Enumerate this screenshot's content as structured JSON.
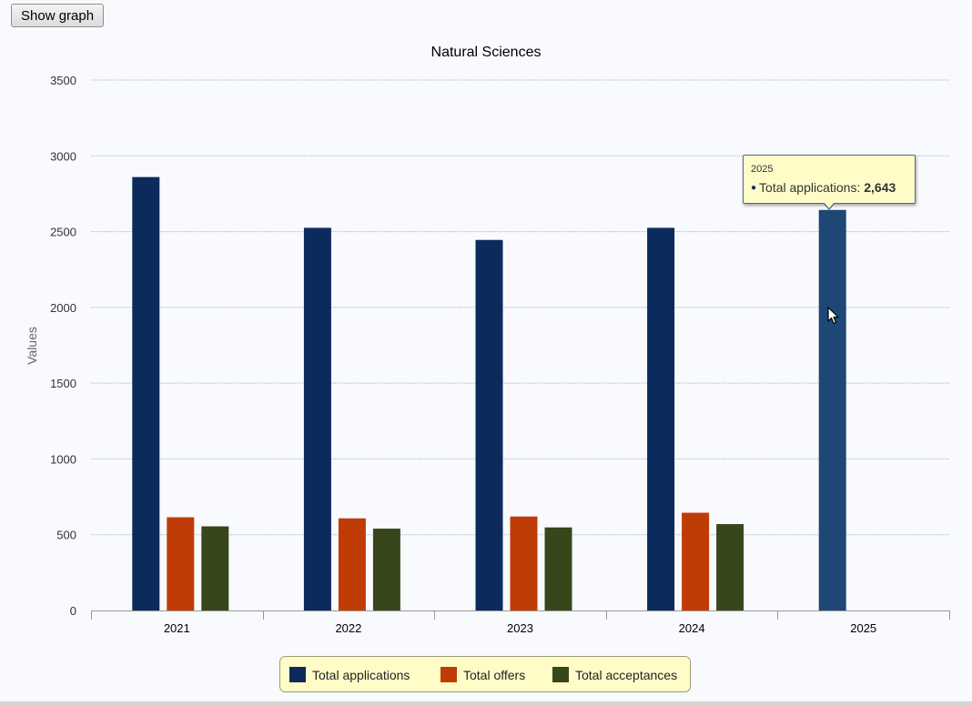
{
  "toolbar": {
    "show_graph_label": "Show graph"
  },
  "tooltip": {
    "title": "2025",
    "series_label": "Total applications",
    "value": "2,643"
  },
  "chart_data": {
    "type": "bar",
    "title": "Natural Sciences",
    "xlabel": "",
    "ylabel": "Values",
    "categories": [
      "2021",
      "2022",
      "2023",
      "2024",
      "2025"
    ],
    "ylim": [
      0,
      3500
    ],
    "yticks": [
      "0",
      "500",
      "1000",
      "1500",
      "2000",
      "2500",
      "3000",
      "3500"
    ],
    "grid": true,
    "legend_placement": "bottom-center",
    "legend_background": "#fffcc8",
    "series": [
      {
        "name": "Total applications",
        "color": "#0c2a5c",
        "values": [
          2860,
          2525,
          2445,
          2525,
          2643
        ]
      },
      {
        "name": "Total offers",
        "color": "#c03c06",
        "values": [
          615,
          608,
          620,
          645,
          null
        ]
      },
      {
        "name": "Total acceptances",
        "color": "#38461c",
        "values": [
          555,
          540,
          548,
          570,
          null
        ]
      }
    ],
    "highlighted": {
      "series": 0,
      "category": 4,
      "color": "#1f4776"
    }
  }
}
